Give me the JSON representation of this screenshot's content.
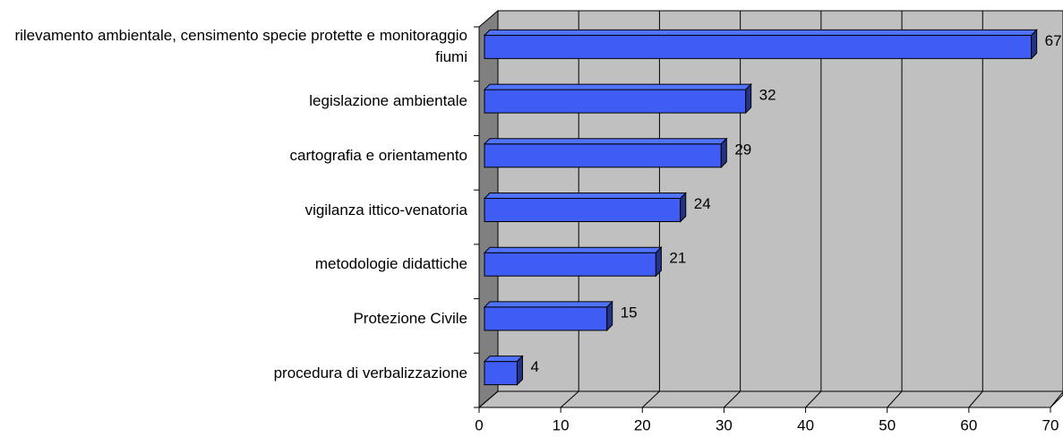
{
  "chart_data": {
    "type": "bar",
    "orientation": "horizontal",
    "categories": [
      "rilevamento ambientale, censimento specie protette e monitoraggio fiumi",
      "legislazione ambientale",
      "cartografia e orientamento",
      "vigilanza ittico-venatoria",
      "metodologie didattiche",
      "Protezione Civile",
      "procedura di verbalizzazione"
    ],
    "values": [
      67,
      32,
      29,
      24,
      21,
      15,
      4
    ],
    "color": "#3f5cf4",
    "xlim": [
      0,
      70
    ],
    "xticks": [
      0,
      10,
      20,
      30,
      40,
      50,
      60,
      70
    ],
    "grid": true
  }
}
